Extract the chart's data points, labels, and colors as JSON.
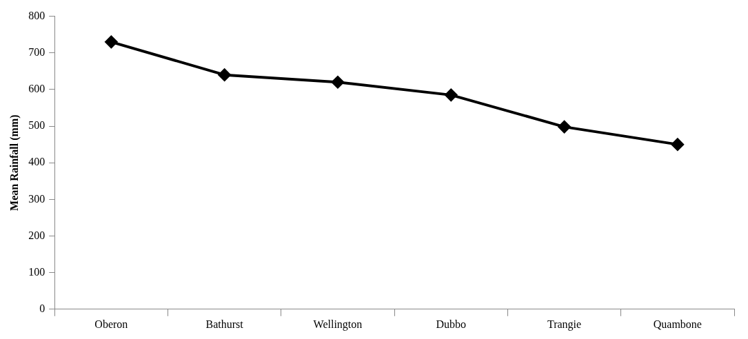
{
  "chart_data": {
    "type": "line",
    "ylabel": "Mean Rainfall (mm)",
    "categories": [
      "Oberon",
      "Bathurst",
      "Wellington",
      "Dubbo",
      "Trangie",
      "Quambone"
    ],
    "series": [
      {
        "color": "#000000",
        "values": [
          730,
          640,
          620,
          585,
          498,
          450
        ]
      }
    ],
    "ylim": [
      0,
      800
    ],
    "yticks": [
      0,
      100,
      200,
      300,
      400,
      500,
      600,
      700,
      800
    ],
    "grid": false,
    "legend": false,
    "marker": "diamond",
    "line_style": "solid"
  }
}
